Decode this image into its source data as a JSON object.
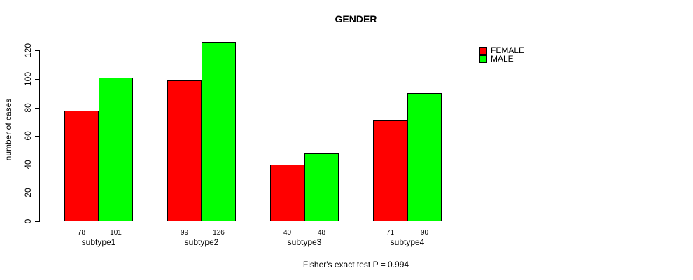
{
  "title": "GENDER",
  "annotation": "Fisher's exact test P = 0.994",
  "y_axis": {
    "label": "number of cases",
    "ticks": [
      0,
      20,
      40,
      60,
      80,
      100,
      120
    ]
  },
  "colors": {
    "female": "#ff0000",
    "male": "#00ff00",
    "axis": "#000000",
    "background": "#ffffff"
  },
  "chart_data": {
    "type": "bar",
    "categories": [
      "subtype1",
      "subtype2",
      "subtype3",
      "subtype4"
    ],
    "series": [
      {
        "name": "FEMALE",
        "color": "#ff0000",
        "values": [
          78,
          99,
          40,
          71
        ]
      },
      {
        "name": "MALE",
        "color": "#00ff00",
        "values": [
          101,
          126,
          48,
          90
        ]
      }
    ],
    "title": "GENDER",
    "xlabel": "",
    "ylabel": "number of cases",
    "ylim": [
      0,
      120
    ],
    "grid": false,
    "legend_position": "top-right",
    "bar_value_labels": true,
    "annotation": "Fisher's exact test P = 0.994"
  }
}
